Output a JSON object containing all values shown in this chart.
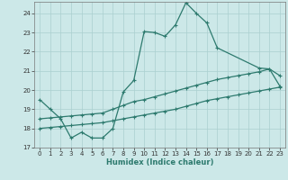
{
  "xlabel": "Humidex (Indice chaleur)",
  "bg_color": "#cce8e8",
  "line_color": "#2d7a6e",
  "grid_color": "#aacfcf",
  "xlim": [
    -0.5,
    23.5
  ],
  "ylim": [
    17.0,
    24.6
  ],
  "yticks": [
    17,
    18,
    19,
    20,
    21,
    22,
    23,
    24
  ],
  "xticks": [
    0,
    1,
    2,
    3,
    4,
    5,
    6,
    7,
    8,
    9,
    10,
    11,
    12,
    13,
    14,
    15,
    16,
    17,
    18,
    19,
    20,
    21,
    22,
    23
  ],
  "line1_x": [
    0,
    1,
    2,
    3,
    4,
    5,
    6,
    7,
    8,
    9,
    10,
    11,
    12,
    13,
    14,
    15,
    16,
    17,
    21,
    22,
    23
  ],
  "line1_y": [
    19.5,
    19.0,
    18.5,
    17.5,
    17.8,
    17.5,
    17.5,
    18.0,
    19.9,
    20.5,
    23.05,
    23.0,
    22.8,
    23.4,
    24.55,
    24.0,
    23.5,
    22.2,
    21.15,
    21.1,
    20.75
  ],
  "line2_x": [
    0,
    1,
    2,
    3,
    4,
    5,
    6,
    7,
    8,
    9,
    10,
    11,
    12,
    13,
    14,
    15,
    16,
    17,
    18,
    19,
    20,
    21,
    22,
    23
  ],
  "line2_y": [
    18.5,
    18.55,
    18.6,
    18.65,
    18.7,
    18.75,
    18.8,
    19.0,
    19.2,
    19.4,
    19.5,
    19.65,
    19.8,
    19.95,
    20.1,
    20.25,
    20.4,
    20.55,
    20.65,
    20.75,
    20.85,
    20.95,
    21.1,
    20.2
  ],
  "line3_x": [
    0,
    1,
    2,
    3,
    4,
    5,
    6,
    7,
    8,
    9,
    10,
    11,
    12,
    13,
    14,
    15,
    16,
    17,
    18,
    19,
    20,
    21,
    22,
    23
  ],
  "line3_y": [
    18.0,
    18.05,
    18.1,
    18.15,
    18.2,
    18.25,
    18.3,
    18.4,
    18.5,
    18.6,
    18.7,
    18.8,
    18.9,
    19.0,
    19.15,
    19.3,
    19.45,
    19.55,
    19.65,
    19.75,
    19.85,
    19.95,
    20.05,
    20.15
  ]
}
